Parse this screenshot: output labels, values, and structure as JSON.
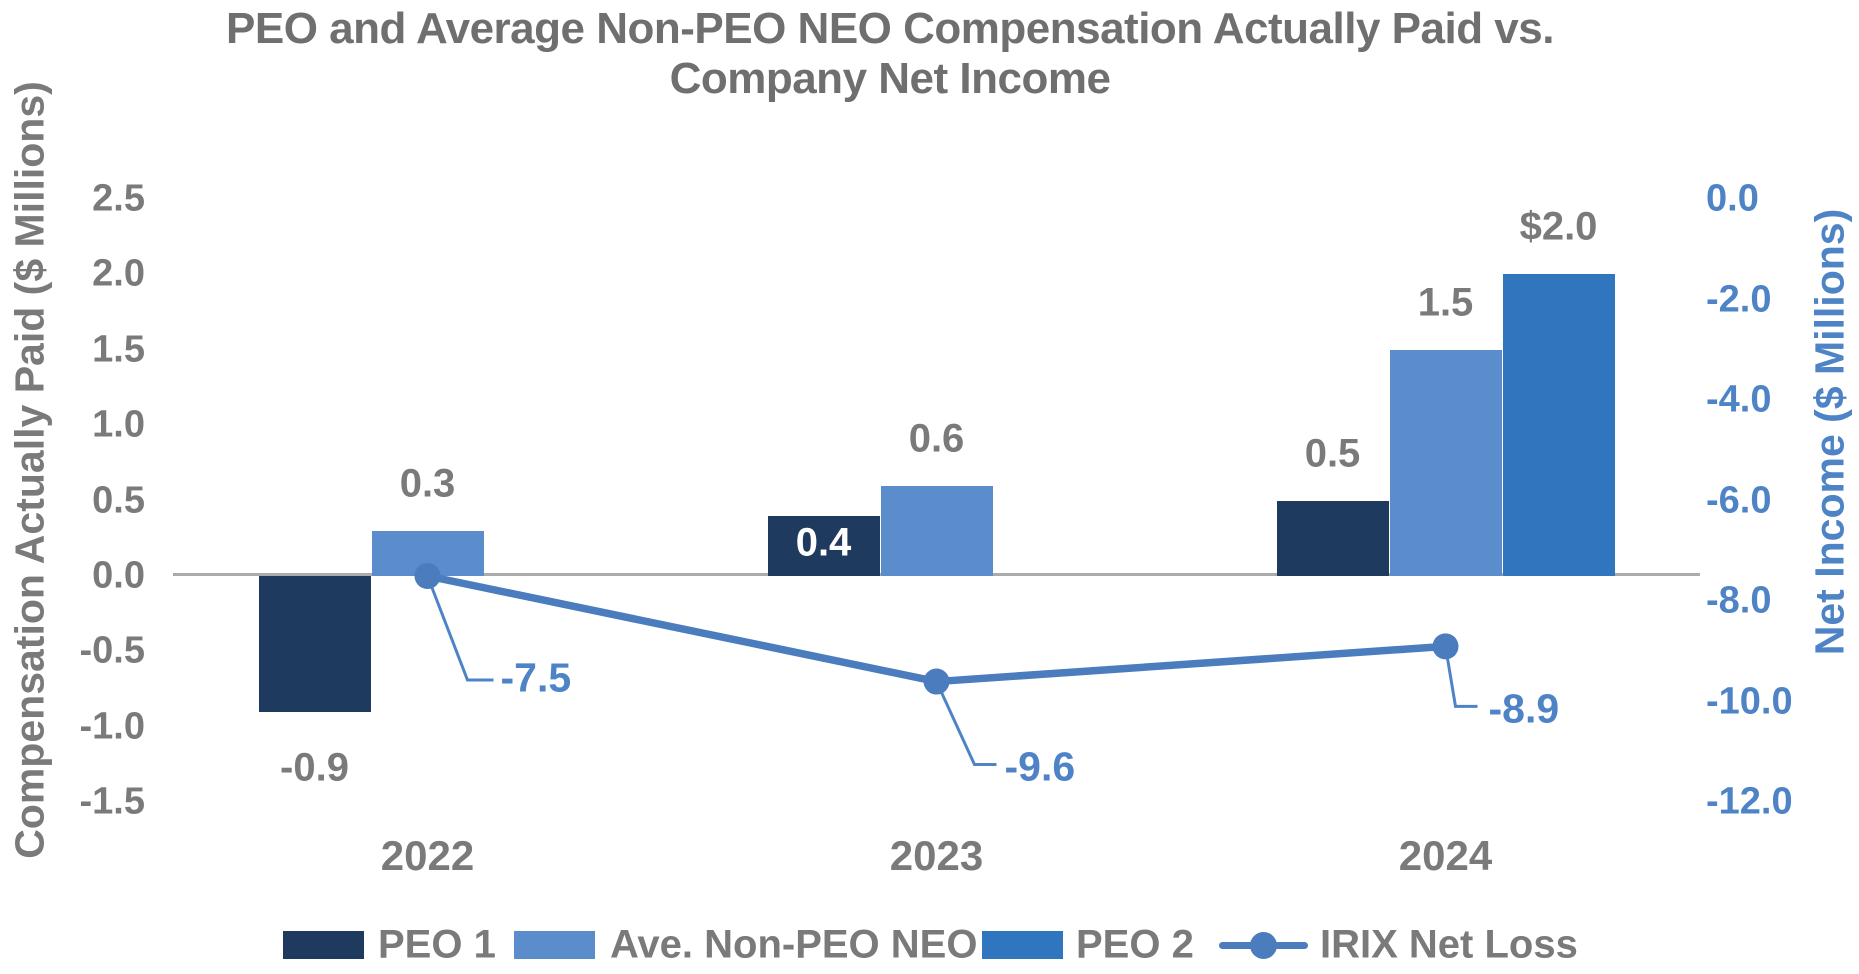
{
  "title": {
    "line1": "PEO and Average Non-PEO NEO Compensation Actually Paid vs.",
    "line2": "Company Net Income"
  },
  "colors": {
    "navy": "#1e3a5f",
    "light_blue": "#5b8ccb",
    "blue": "#3076be",
    "line_blue": "#4a7cbe",
    "blue_text": "#4e84c6",
    "gray_text": "#7a7a7a",
    "title_gray": "#6f6f6f",
    "axis_line_gray": "#ababab",
    "inside_label_white": "#ffffff"
  },
  "axes": {
    "left": {
      "title": "Compensation Actually Paid ($ Millions)",
      "ticks": [
        "2.5",
        "2.0",
        "1.5",
        "1.0",
        "0.5",
        "0.0",
        "-0.5",
        "-1.0",
        "-1.5"
      ],
      "lim": [
        2.5,
        -1.5
      ]
    },
    "right": {
      "title": "Net Income ($ Millions)",
      "ticks": [
        "0.0",
        "-2.0",
        "-4.0",
        "-6.0",
        "-8.0",
        "-10.0",
        "-12.0"
      ],
      "lim": [
        0.0,
        -12.0
      ]
    }
  },
  "chart_data": {
    "type": "bar+line combo, dual y-axis",
    "categories": [
      "2022",
      "2023",
      "2024"
    ],
    "series": [
      {
        "name": "PEO 1",
        "type": "bar",
        "axis": "left",
        "color_key": "navy",
        "values": [
          -0.9,
          0.4,
          0.5
        ],
        "labels": [
          "-0.9",
          "0.4",
          "0.5"
        ],
        "label_pos": [
          "below",
          "inside",
          "above"
        ]
      },
      {
        "name": "Ave. Non-PEO NEO",
        "type": "bar",
        "axis": "left",
        "color_key": "light_blue",
        "values": [
          0.3,
          0.6,
          1.5
        ],
        "labels": [
          "0.3",
          "0.6",
          "1.5"
        ],
        "label_pos": [
          "above",
          "above",
          "above"
        ]
      },
      {
        "name": "PEO 2",
        "type": "bar",
        "axis": "left",
        "color_key": "blue",
        "values": [
          null,
          null,
          2.0
        ],
        "labels": [
          null,
          null,
          "$2.0"
        ],
        "label_pos": [
          null,
          null,
          "above"
        ]
      },
      {
        "name": "IRIX Net Loss",
        "type": "line",
        "axis": "right",
        "color_key": "line_blue",
        "values": [
          -7.5,
          -9.6,
          -8.9
        ],
        "labels": [
          "-7.5",
          "-9.6",
          "-8.9"
        ]
      }
    ],
    "title": "PEO and Average Non-PEO NEO Compensation Actually Paid vs. Company Net Income",
    "left_ylabel": "Compensation Actually Paid ($ Millions)",
    "right_ylabel": "Net Income ($ Millions)",
    "left_ylim": [
      2.5,
      -1.5
    ],
    "right_ylim": [
      0.0,
      -12.0
    ],
    "grid": false,
    "legend_position": "bottom"
  },
  "legend": [
    {
      "kind": "swatch",
      "color_key": "navy",
      "label": "PEO 1"
    },
    {
      "kind": "swatch",
      "color_key": "light_blue",
      "label": "Ave. Non-PEO NEO"
    },
    {
      "kind": "swatch",
      "color_key": "blue",
      "label": "PEO 2"
    },
    {
      "kind": "line",
      "color_key": "line_blue",
      "label": "IRIX Net Loss"
    }
  ]
}
